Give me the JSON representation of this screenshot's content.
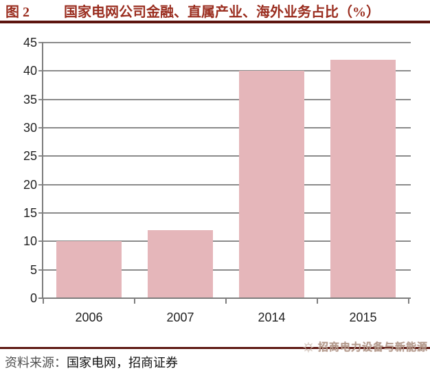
{
  "header": {
    "figure_label": "图 2",
    "title": "国家电网公司金融、直属产业、海外业务占比（%）"
  },
  "chart_data": {
    "type": "bar",
    "categories": [
      "2006",
      "2007",
      "2014",
      "2015"
    ],
    "values": [
      10,
      12,
      40,
      42
    ],
    "title": "国家电网公司金融、直属产业、海外业务占比（%）",
    "xlabel": "",
    "ylabel": "",
    "ylim": [
      0,
      45
    ],
    "ytick_step": 5,
    "grid": true,
    "legend": "none",
    "bar_color": "#e5b6ba"
  },
  "colors": {
    "accent_red": "#9a2d1f",
    "rule_maroon": "#5c150f",
    "gridline_gray": "#8a8a8a",
    "bar_pink": "#e5b6ba"
  },
  "footer": {
    "source_label": "资料来源：",
    "source_text": "国家电网，招商证券",
    "watermark": {
      "icon": "sun-icon",
      "icon_glyph": "☼",
      "text": "招商电力设备与新能源"
    }
  }
}
